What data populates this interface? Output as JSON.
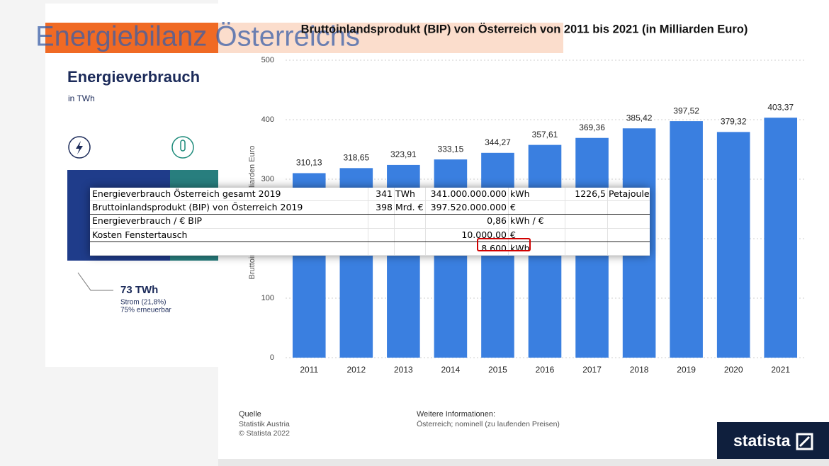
{
  "background": {
    "heading": "Energiebilanz Österreichs",
    "panel_title": "Energieverbrauch",
    "panel_unit": "in TWh",
    "strom_value": "73 TWh",
    "strom_share": "Strom (21,8%)",
    "strom_renewable": "75% erneuerbar"
  },
  "chart_data": {
    "type": "bar",
    "title": "Bruttoinlandsprodukt (BIP) von Österreich von 2011 bis 2021 (in Milliarden Euro)",
    "y_label": "Bruttoinlandsprodukt in Milliarden Euro",
    "categories": [
      "2011",
      "2012",
      "2013",
      "2014",
      "2015",
      "2016",
      "2017",
      "2018",
      "2019",
      "2020",
      "2021"
    ],
    "values": [
      310.13,
      318.65,
      323.91,
      333.15,
      344.27,
      357.61,
      369.36,
      385.42,
      397.52,
      379.32,
      403.37
    ],
    "value_labels": [
      "310,13",
      "318,65",
      "323,91",
      "333,15",
      "344,27",
      "357,61",
      "369,36",
      "385,42",
      "397,52",
      "379,32",
      "403,37"
    ],
    "color": "#3a7fe0",
    "ylim": [
      0,
      500
    ],
    "yticks": [
      0,
      100,
      200,
      300,
      400,
      500
    ],
    "grid": true,
    "source_label": "Quelle",
    "source": "Statistik Austria",
    "copyright": "© Statista 2022",
    "info_label": "Weitere Informationen:",
    "info": "Österreich; nominell (zu laufenden Preisen)",
    "brand": "statista"
  },
  "table": {
    "rows": [
      {
        "label": "Energieverbrauch Österreich gesamt 2019",
        "amount": "341",
        "unit": "TWh",
        "value": "341.000.000.000",
        "value_unit": "kWh",
        "alt": "1226,5",
        "alt_unit": "Petajoule"
      },
      {
        "label": "Bruttoinlandsprodukt (BIP) von Österreich 2019",
        "amount": "398",
        "unit": "Mrd. €",
        "value": "397.520.000.000",
        "value_unit": "€"
      },
      {
        "label": "Energieverbrauch / € BIP",
        "value": "0,86",
        "value_unit": "kWh / €"
      },
      {
        "label": "Kosten Fenstertausch",
        "value": "10.000,00",
        "value_unit": "€"
      },
      {
        "value": "8.600",
        "value_unit": "kWh"
      }
    ]
  }
}
